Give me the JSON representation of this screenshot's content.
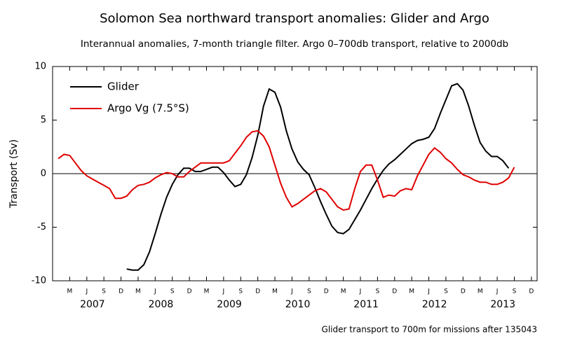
{
  "chart_data": {
    "type": "line",
    "title": "Solomon Sea northward transport anomalies: Glider and Argo",
    "subtitle": "Interannual anomalies, 7-month triangle filter. Argo 0–700db transport, relative to 2000db",
    "y_label": "Transport (Sv)",
    "footnote": "Glider transport to 700m for missions after 135043",
    "x": [
      "2007-01",
      "2007-02",
      "2007-03",
      "2007-04",
      "2007-05",
      "2007-06",
      "2007-07",
      "2007-08",
      "2007-09",
      "2007-10",
      "2007-11",
      "2007-12",
      "2008-01",
      "2008-02",
      "2008-03",
      "2008-04",
      "2008-05",
      "2008-06",
      "2008-07",
      "2008-08",
      "2008-09",
      "2008-10",
      "2008-11",
      "2008-12",
      "2009-01",
      "2009-02",
      "2009-03",
      "2009-04",
      "2009-05",
      "2009-06",
      "2009-07",
      "2009-08",
      "2009-09",
      "2009-10",
      "2009-11",
      "2009-12",
      "2010-01",
      "2010-02",
      "2010-03",
      "2010-04",
      "2010-05",
      "2010-06",
      "2010-07",
      "2010-08",
      "2010-09",
      "2010-10",
      "2010-11",
      "2010-12",
      "2011-01",
      "2011-02",
      "2011-03",
      "2011-04",
      "2011-05",
      "2011-06",
      "2011-07",
      "2011-08",
      "2011-09",
      "2011-10",
      "2011-11",
      "2011-12",
      "2012-01",
      "2012-02",
      "2012-03",
      "2012-04",
      "2012-05",
      "2012-06",
      "2012-07",
      "2012-08",
      "2012-09",
      "2012-10",
      "2012-11",
      "2012-12",
      "2013-01",
      "2013-02",
      "2013-03",
      "2013-04",
      "2013-05",
      "2013-06",
      "2013-07",
      "2013-08",
      "2013-09"
    ],
    "series": [
      {
        "name": "Glider",
        "color": "#000000",
        "values": [
          null,
          null,
          null,
          null,
          null,
          null,
          null,
          null,
          null,
          null,
          null,
          null,
          -8.9,
          -9.0,
          -9.0,
          -8.5,
          -7.3,
          -5.6,
          -3.8,
          -2.2,
          -1.0,
          -0.1,
          0.5,
          0.5,
          0.2,
          0.2,
          0.4,
          0.6,
          0.6,
          0.1,
          -0.6,
          -1.2,
          -1.0,
          -0.1,
          1.5,
          3.6,
          6.3,
          7.9,
          7.6,
          6.2,
          4.0,
          2.3,
          1.1,
          0.4,
          -0.1,
          -1.3,
          -2.6,
          -3.8,
          -4.9,
          -5.5,
          -5.6,
          -5.2,
          -4.3,
          -3.4,
          -2.4,
          -1.4,
          -0.5,
          0.3,
          0.9,
          1.3,
          1.8,
          2.3,
          2.8,
          3.1,
          3.2,
          3.4,
          4.2,
          5.6,
          6.9,
          8.2,
          8.4,
          7.8,
          6.3,
          4.5,
          2.9,
          2.1,
          1.6,
          1.6,
          1.2,
          0.5,
          null
        ]
      },
      {
        "name": "Argo Vg (7.5°S)",
        "color": "#e00000",
        "values": [
          1.4,
          1.8,
          1.7,
          1.0,
          0.3,
          -0.2,
          -0.5,
          -0.8,
          -1.1,
          -1.4,
          -2.3,
          -2.3,
          -2.1,
          -1.5,
          -1.1,
          -1.0,
          -0.8,
          -0.4,
          -0.1,
          0.1,
          0.0,
          -0.3,
          -0.3,
          0.2,
          0.6,
          1.0,
          1.0,
          1.0,
          1.0,
          1.0,
          1.2,
          1.9,
          2.6,
          3.4,
          3.9,
          4.0,
          3.5,
          2.5,
          0.8,
          -0.9,
          -2.2,
          -3.1,
          -2.8,
          -2.4,
          -2.0,
          -1.6,
          -1.4,
          -1.7,
          -2.4,
          -3.1,
          -3.4,
          -3.3,
          -1.4,
          0.2,
          0.8,
          0.8,
          -0.6,
          -2.2,
          -2.0,
          -2.1,
          -1.6,
          -1.4,
          -1.5,
          -0.2,
          0.8,
          1.8,
          2.4,
          2.0,
          1.4,
          1.0,
          0.4,
          -0.1,
          -0.3,
          -0.6,
          -0.8,
          -0.8,
          -1.0,
          -1.0,
          -0.8,
          -0.4,
          0.6
        ]
      }
    ],
    "xlim": [
      "2006-12",
      "2014-01"
    ],
    "xticks": [
      {
        "value": "2007-03",
        "label": "M"
      },
      {
        "value": "2007-06",
        "label": "J"
      },
      {
        "value": "2007-09",
        "label": "S"
      },
      {
        "value": "2007-12",
        "label": "D"
      },
      {
        "value": "2008-03",
        "label": "M"
      },
      {
        "value": "2008-06",
        "label": "J"
      },
      {
        "value": "2008-09",
        "label": "S"
      },
      {
        "value": "2008-12",
        "label": "D"
      },
      {
        "value": "2009-03",
        "label": "M"
      },
      {
        "value": "2009-06",
        "label": "J"
      },
      {
        "value": "2009-09",
        "label": "S"
      },
      {
        "value": "2009-12",
        "label": "D"
      },
      {
        "value": "2010-03",
        "label": "M"
      },
      {
        "value": "2010-06",
        "label": "J"
      },
      {
        "value": "2010-09",
        "label": "S"
      },
      {
        "value": "2010-12",
        "label": "D"
      },
      {
        "value": "2011-03",
        "label": "M"
      },
      {
        "value": "2011-06",
        "label": "J"
      },
      {
        "value": "2011-09",
        "label": "S"
      },
      {
        "value": "2011-12",
        "label": "D"
      },
      {
        "value": "2012-03",
        "label": "M"
      },
      {
        "value": "2012-06",
        "label": "J"
      },
      {
        "value": "2012-09",
        "label": "S"
      },
      {
        "value": "2012-12",
        "label": "D"
      },
      {
        "value": "2013-03",
        "label": "M"
      },
      {
        "value": "2013-06",
        "label": "J"
      },
      {
        "value": "2013-09",
        "label": "S"
      },
      {
        "value": "2013-12",
        "label": "D"
      }
    ],
    "year_labels": [
      {
        "value": "2007-07",
        "label": "2007"
      },
      {
        "value": "2008-07",
        "label": "2008"
      },
      {
        "value": "2009-07",
        "label": "2009"
      },
      {
        "value": "2010-07",
        "label": "2010"
      },
      {
        "value": "2011-07",
        "label": "2011"
      },
      {
        "value": "2012-07",
        "label": "2012"
      },
      {
        "value": "2013-07",
        "label": "2013"
      }
    ],
    "ylim": [
      -10,
      10
    ],
    "yticks": [
      -10,
      -5,
      0,
      5,
      10
    ],
    "legend": "top-left"
  }
}
